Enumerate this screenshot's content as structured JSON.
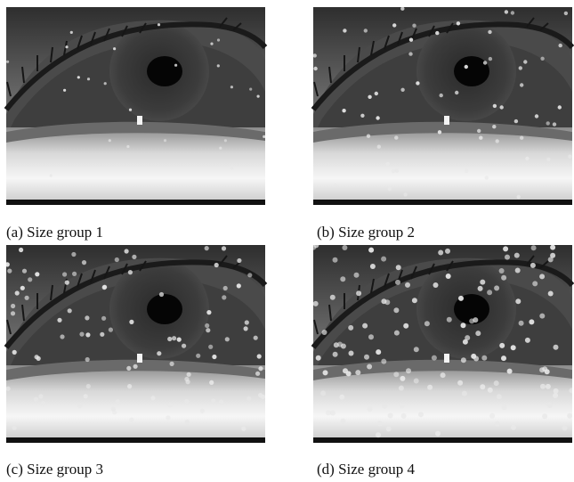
{
  "figure": {
    "panels": [
      {
        "caption": "(a) Size group 1"
      },
      {
        "caption": "(b) Size group 2"
      },
      {
        "caption": "(c) Size group 3"
      },
      {
        "caption": "(d) Size group 4"
      }
    ]
  }
}
